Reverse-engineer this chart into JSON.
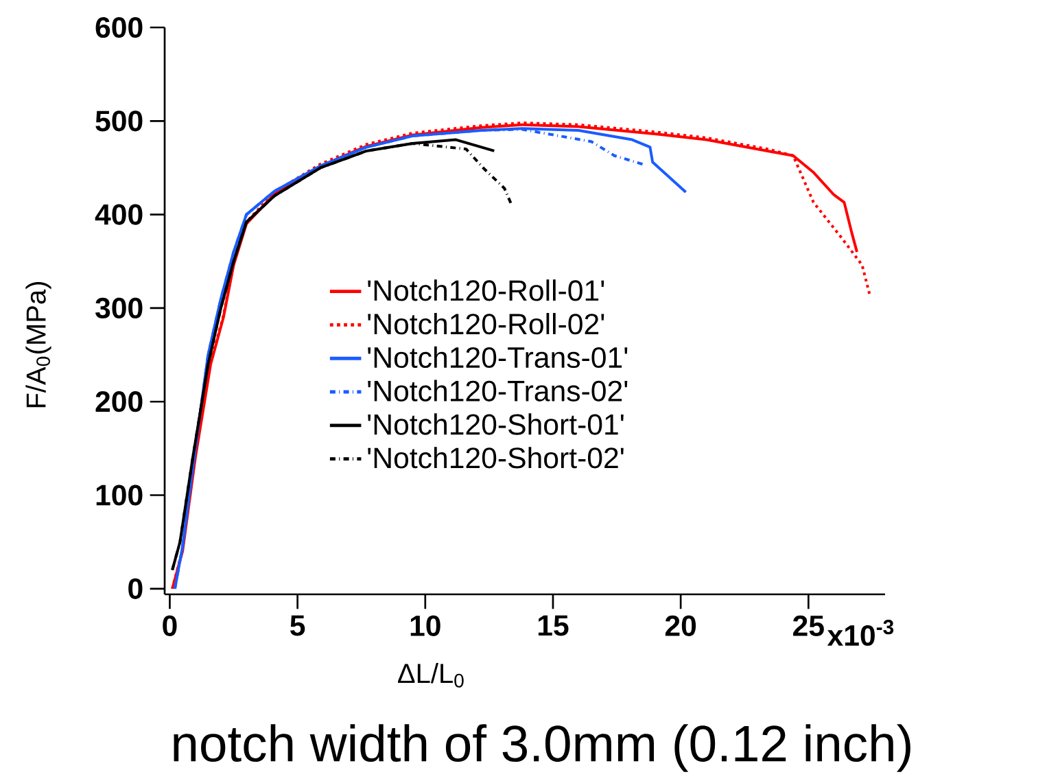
{
  "chart_data": {
    "type": "line",
    "xlabel": "ΔL/L$_{0}$",
    "ylabel": "F/A$_{0}$(MPa)",
    "annotations": [
      "notch width of 3.0mm (0.12 inch)",
      "x10$^{-3}$"
    ],
    "xlim": [
      -0.2,
      28
    ],
    "ylim": [
      -6,
      600
    ],
    "xticks": [
      0,
      5,
      10,
      15,
      20,
      25
    ],
    "yticks": [
      0,
      100,
      200,
      300,
      400,
      500,
      600
    ],
    "grid": false,
    "legend": "center",
    "marker": "none",
    "series": [
      {
        "name": "'Notch120-Roll-01'",
        "color": "#ff0000",
        "line_style": "solid",
        "x": [
          0.1,
          0.5,
          1.0,
          1.6,
          2.1,
          2.5,
          3.0,
          4.1,
          5.9,
          7.7,
          9.5,
          12.2,
          13.8,
          16,
          19.1,
          21,
          23.4,
          24.4,
          25.2,
          26.0,
          26.4,
          26.7,
          26.9
        ],
        "values": [
          0,
          40,
          140,
          240,
          290,
          346,
          390,
          422,
          452,
          473,
          485,
          493,
          496,
          494,
          486,
          480,
          468,
          463,
          445,
          421,
          413,
          380,
          360
        ]
      },
      {
        "name": "'Notch120-Roll-02'",
        "color": "#ff0000",
        "line_style": "dotted",
        "x": [
          0.1,
          0.5,
          1.0,
          1.6,
          2.1,
          2.5,
          3.0,
          4.1,
          5.9,
          7.7,
          9.5,
          12.2,
          13.8,
          16,
          19.1,
          21,
          23.4,
          24.4,
          25.2,
          26.3,
          27.1,
          27.4
        ],
        "values": [
          0,
          42,
          142,
          242,
          292,
          348,
          392,
          424,
          454,
          475,
          487,
          495,
          498,
          496,
          488,
          482,
          470,
          463,
          413,
          375,
          346,
          314
        ]
      },
      {
        "name": "'Notch120-Trans-01'",
        "color": "#1a5cff",
        "line_style": "solid",
        "x": [
          0.2,
          0.5,
          1.0,
          1.5,
          2.0,
          2.5,
          3.0,
          4.1,
          5.9,
          7.7,
          9.5,
          12.2,
          13.8,
          16,
          18.1,
          18.8,
          18.9,
          20.2
        ],
        "values": [
          0,
          45,
          150,
          250,
          310,
          360,
          400,
          425,
          452,
          472,
          484,
          490,
          492,
          490,
          480,
          472,
          456,
          424
        ]
      },
      {
        "name": "'Notch120-Trans-02'",
        "color": "#1a5cff",
        "line_style": "dashdot",
        "x": [
          0.2,
          0.5,
          1.0,
          1.5,
          2.0,
          2.5,
          3.0,
          4.1,
          5.9,
          7.7,
          9.5,
          12.2,
          13.8,
          16.5,
          17.4,
          18.6
        ],
        "values": [
          0,
          45,
          150,
          250,
          310,
          360,
          400,
          425,
          452,
          472,
          484,
          490,
          491,
          478,
          463,
          453
        ]
      },
      {
        "name": "'Notch120-Short-01'",
        "color": "#000000",
        "line_style": "solid",
        "x": [
          0.1,
          0.4,
          0.9,
          1.5,
          2.0,
          2.5,
          3.0,
          4.1,
          5.9,
          7.7,
          9.5,
          11.2,
          12.7
        ],
        "values": [
          20,
          50,
          140,
          240,
          300,
          350,
          392,
          420,
          450,
          468,
          476,
          480,
          468
        ]
      },
      {
        "name": "'Notch120-Short-02'",
        "color": "#000000",
        "line_style": "dashdot",
        "x": [
          0.1,
          0.4,
          0.9,
          1.5,
          2.0,
          2.5,
          3.0,
          4.1,
          5.9,
          7.7,
          9.5,
          11.6,
          12.3,
          13.1,
          13.4
        ],
        "values": [
          20,
          50,
          140,
          240,
          300,
          350,
          392,
          420,
          450,
          468,
          476,
          470,
          449,
          428,
          409
        ]
      }
    ]
  }
}
